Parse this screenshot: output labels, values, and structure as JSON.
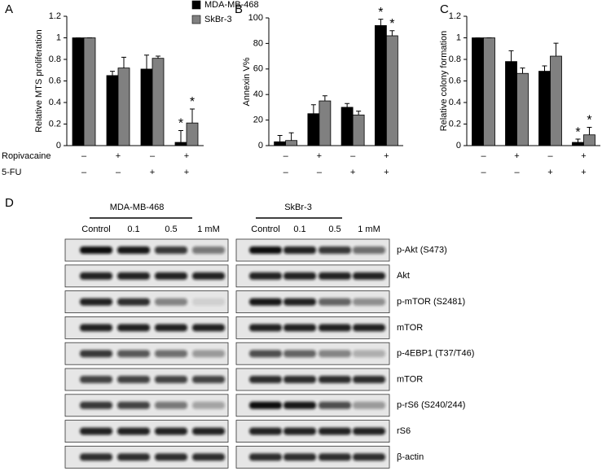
{
  "chart_data": [
    {
      "type": "bar",
      "panel": "A",
      "ylabel": "Relative MTS proliferation",
      "ylim": [
        0,
        1.2
      ],
      "yticks": [
        0,
        0.2,
        0.4,
        0.6,
        0.8,
        1,
        1.2
      ],
      "legend": "top-right",
      "series": [
        {
          "name": "MDA-MB-468",
          "color": "#000000",
          "values": [
            1,
            0.65,
            0.71,
            0.03
          ],
          "errors": [
            0,
            0.04,
            0.13,
            0.11
          ]
        },
        {
          "name": "SkBr-3",
          "color": "#808080",
          "values": [
            1,
            0.72,
            0.81,
            0.21
          ],
          "errors": [
            0,
            0.1,
            0.02,
            0.13
          ]
        }
      ],
      "treatments": [
        {
          "name": "Ropivacaine",
          "signs": [
            "–",
            "+",
            "–",
            "+"
          ]
        },
        {
          "name": "5-FU",
          "signs": [
            "–",
            "–",
            "+",
            "+"
          ]
        }
      ],
      "annotations": [
        {
          "text": "*",
          "series": 0,
          "category": 3
        },
        {
          "text": "*",
          "series": 1,
          "category": 3
        }
      ]
    },
    {
      "type": "bar",
      "panel": "B",
      "ylabel": "Annexin V%",
      "ylim": [
        0,
        100
      ],
      "yticks": [
        0,
        20,
        40,
        60,
        80,
        100
      ],
      "series": [
        {
          "color": "#000000",
          "values": [
            3,
            25,
            30,
            94
          ],
          "errors": [
            5,
            7,
            3,
            5
          ]
        },
        {
          "color": "#808080",
          "values": [
            4,
            35,
            24,
            86
          ],
          "errors": [
            6,
            4,
            3,
            4
          ]
        }
      ],
      "treatments": [
        {
          "signs": [
            "–",
            "+",
            "–",
            "+"
          ]
        },
        {
          "signs": [
            "–",
            "–",
            "+",
            "+"
          ]
        }
      ],
      "annotations": [
        {
          "text": "*",
          "series": 0,
          "category": 3
        },
        {
          "text": "*",
          "series": 1,
          "category": 3
        }
      ]
    },
    {
      "type": "bar",
      "panel": "C",
      "ylabel": "Relative colony formation",
      "ylim": [
        0,
        1.2
      ],
      "yticks": [
        0,
        0.2,
        0.4,
        0.6,
        0.8,
        1,
        1.2
      ],
      "series": [
        {
          "color": "#000000",
          "values": [
            1,
            0.78,
            0.69,
            0.03
          ],
          "errors": [
            0,
            0.1,
            0.05,
            0.03
          ]
        },
        {
          "color": "#808080",
          "values": [
            1,
            0.67,
            0.83,
            0.1
          ],
          "errors": [
            0,
            0.05,
            0.12,
            0.07
          ]
        }
      ],
      "treatments": [
        {
          "signs": [
            "–",
            "+",
            "–",
            "+"
          ]
        },
        {
          "signs": [
            "–",
            "–",
            "+",
            "+"
          ]
        }
      ],
      "annotations": [
        {
          "text": "*",
          "series": 0,
          "category": 3
        },
        {
          "text": "*",
          "series": 1,
          "category": 3
        }
      ]
    }
  ],
  "blots": {
    "panel": "D",
    "groups": [
      {
        "name": "MDA-MB-468",
        "lanes": [
          "Control",
          "0.1",
          "0.5",
          "1 mM"
        ]
      },
      {
        "name": "SkBr-3",
        "lanes": [
          "Control",
          "0.1",
          "0.5",
          "1 mM"
        ]
      }
    ],
    "rows": [
      "p-Akt (S473)",
      "Akt",
      "p-mTOR (S2481)",
      "mTOR",
      "p-4EBP1 (T37/T46)",
      "mTOR",
      "p-rS6 (S240/244)",
      "rS6",
      "β-actin"
    ]
  }
}
